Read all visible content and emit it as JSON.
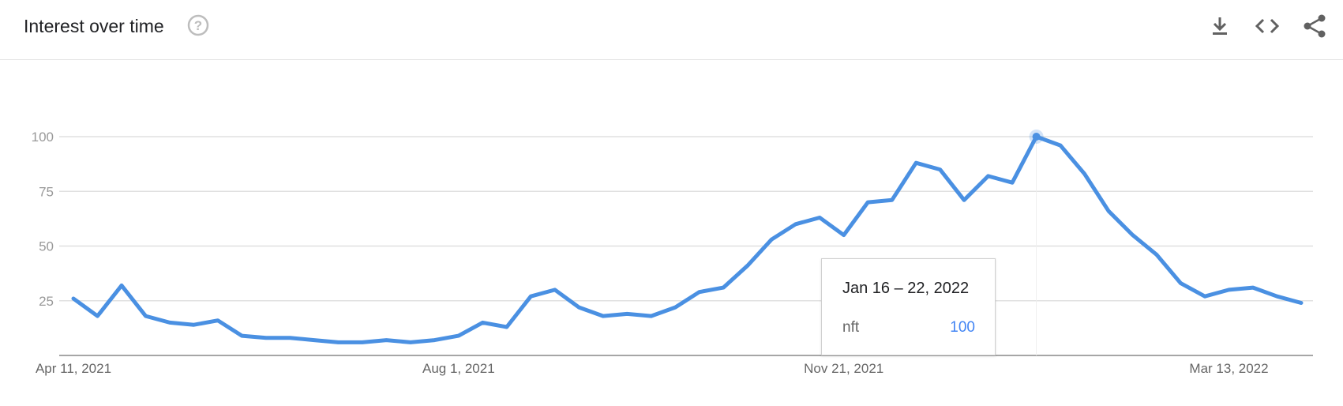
{
  "header": {
    "title": "Interest over time"
  },
  "toolbar": {
    "icons": [
      "download-icon",
      "embed-icon",
      "share-icon"
    ]
  },
  "tooltip": {
    "date": "Jan 16 – 22, 2022",
    "term": "nft",
    "value": "100"
  },
  "chart_data": {
    "type": "line",
    "title": "Interest over time",
    "xlabel": "",
    "ylabel": "",
    "ylim": [
      0,
      100
    ],
    "yticks": [
      25,
      50,
      75,
      100
    ],
    "grid": true,
    "x_tick_labels": [
      {
        "index": 0,
        "label": "Apr 11, 2021"
      },
      {
        "index": 16,
        "label": "Aug 1, 2021"
      },
      {
        "index": 32,
        "label": "Nov 21, 2021"
      },
      {
        "index": 48,
        "label": "Mar 13, 2022"
      }
    ],
    "highlight_index": 40,
    "colors": {
      "line": "#4a90e2",
      "grid": "#e0e0e0",
      "axis": "#888888"
    },
    "series": [
      {
        "name": "nft",
        "values": [
          26,
          18,
          32,
          18,
          15,
          14,
          16,
          9,
          8,
          8,
          7,
          6,
          6,
          7,
          6,
          7,
          9,
          15,
          13,
          27,
          30,
          22,
          18,
          19,
          18,
          22,
          29,
          31,
          41,
          53,
          60,
          63,
          55,
          70,
          71,
          88,
          85,
          71,
          82,
          79,
          100,
          96,
          83,
          66,
          55,
          46,
          33,
          27,
          30,
          31,
          27,
          24
        ]
      }
    ]
  }
}
